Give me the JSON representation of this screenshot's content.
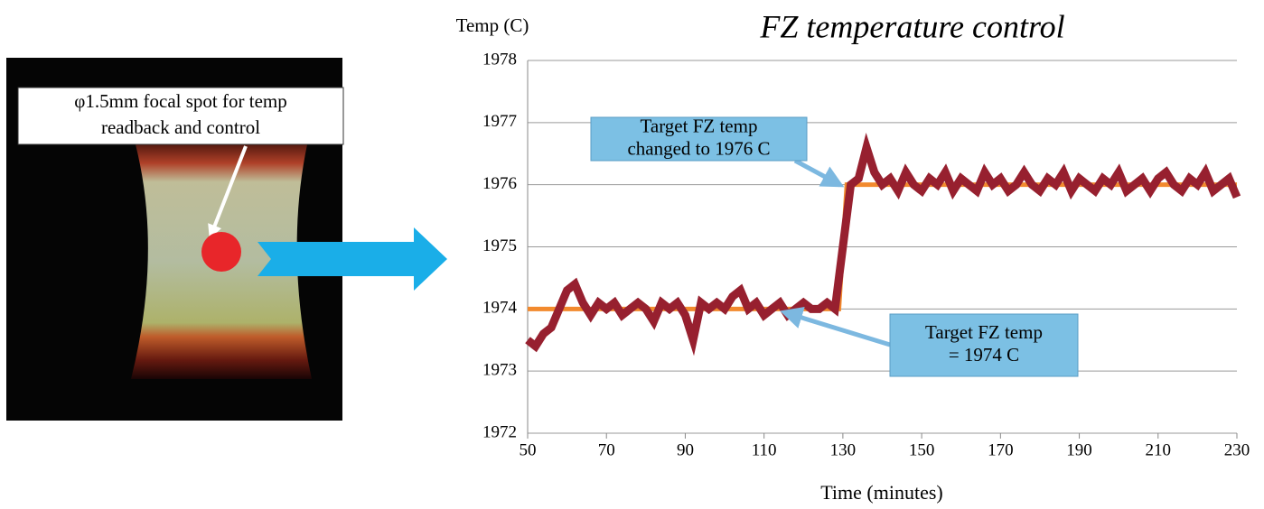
{
  "left_panel": {
    "label_lines": [
      "φ1.5mm focal spot for temp",
      "readback and control"
    ]
  },
  "chart_data": {
    "type": "line",
    "title": "FZ temperature control",
    "y_label": "Temp (C)",
    "x_label": "Time (minutes)",
    "xlim": [
      50,
      230
    ],
    "ylim": [
      1972,
      1978
    ],
    "xticks": [
      50,
      70,
      90,
      110,
      130,
      150,
      170,
      190,
      210,
      230
    ],
    "yticks": [
      1972,
      1973,
      1974,
      1975,
      1976,
      1977,
      1978
    ],
    "grid": true,
    "series": [
      {
        "color": "#f28a2e",
        "x": [
          50,
          129,
          131,
          230
        ],
        "values": [
          1974,
          1974,
          1976,
          1976
        ]
      },
      {
        "color": "#97202f",
        "x": [
          50,
          52,
          54,
          56,
          58,
          60,
          62,
          64,
          66,
          68,
          70,
          72,
          74,
          76,
          78,
          80,
          82,
          84,
          86,
          88,
          90,
          92,
          94,
          96,
          98,
          100,
          102,
          104,
          106,
          108,
          110,
          112,
          114,
          116,
          118,
          120,
          122,
          124,
          126,
          128,
          130,
          132,
          134,
          136,
          138,
          140,
          142,
          144,
          146,
          148,
          150,
          152,
          154,
          156,
          158,
          160,
          162,
          164,
          166,
          168,
          170,
          172,
          174,
          176,
          178,
          180,
          182,
          184,
          186,
          188,
          190,
          192,
          194,
          196,
          198,
          200,
          202,
          204,
          206,
          208,
          210,
          212,
          214,
          216,
          218,
          220,
          222,
          224,
          226,
          228,
          230
        ],
        "values": [
          1973.5,
          1973.4,
          1973.6,
          1973.7,
          1974.0,
          1974.3,
          1974.4,
          1974.1,
          1973.9,
          1974.1,
          1974.0,
          1974.1,
          1973.9,
          1974.0,
          1974.1,
          1974.0,
          1973.8,
          1974.1,
          1974.0,
          1974.1,
          1973.9,
          1973.5,
          1974.1,
          1974.0,
          1974.1,
          1974.0,
          1974.2,
          1974.3,
          1974.0,
          1974.1,
          1973.9,
          1974.0,
          1974.1,
          1973.9,
          1974.0,
          1974.1,
          1974.0,
          1974.0,
          1974.1,
          1974.0,
          1975.0,
          1976.0,
          1976.1,
          1976.6,
          1976.2,
          1976.0,
          1976.1,
          1975.9,
          1976.2,
          1976.0,
          1975.9,
          1976.1,
          1976.0,
          1976.2,
          1975.9,
          1976.1,
          1976.0,
          1975.9,
          1976.2,
          1976.0,
          1976.1,
          1975.9,
          1976.0,
          1976.2,
          1976.0,
          1975.9,
          1976.1,
          1976.0,
          1976.2,
          1975.9,
          1976.1,
          1976.0,
          1975.9,
          1976.1,
          1976.0,
          1976.2,
          1975.9,
          1976.0,
          1976.1,
          1975.9,
          1976.1,
          1976.2,
          1976.0,
          1975.9,
          1976.1,
          1976.0,
          1976.2,
          1975.9,
          1976.0,
          1976.1,
          1975.8
        ]
      }
    ],
    "annotations": [
      {
        "lines": [
          "Target FZ temp",
          "changed to 1976 C"
        ]
      },
      {
        "lines": [
          "Target FZ temp",
          "= 1974 C"
        ]
      }
    ]
  }
}
